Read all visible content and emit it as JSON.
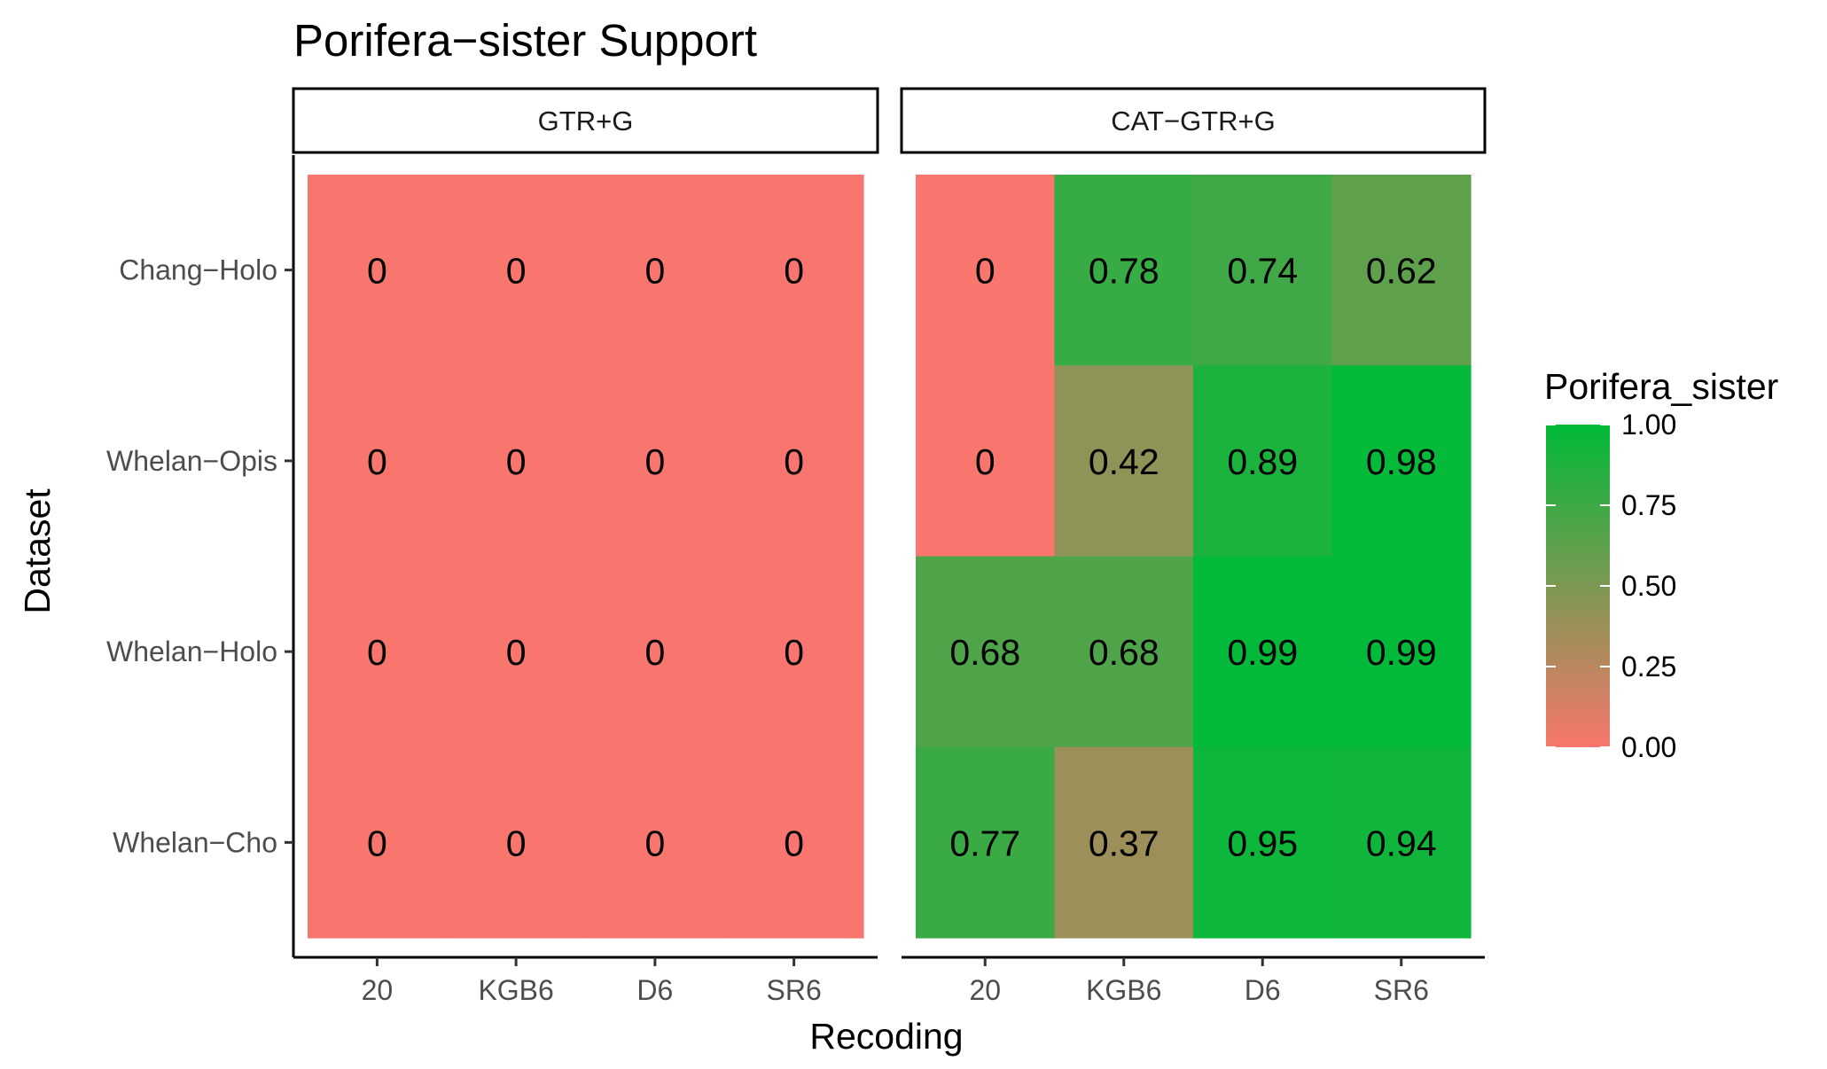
{
  "chart_data": {
    "type": "heatmap",
    "title": "Porifera−sister Support",
    "xlabel": "Recoding",
    "ylabel": "Dataset",
    "x_categories": [
      "20",
      "KGB6",
      "D6",
      "SR6"
    ],
    "y_categories": [
      "Chang−Holo",
      "Whelan−Opis",
      "Whelan−Holo",
      "Whelan−Cho"
    ],
    "facets": [
      {
        "label": "GTR+G",
        "values": [
          [
            0,
            0,
            0,
            0
          ],
          [
            0,
            0,
            0,
            0
          ],
          [
            0,
            0,
            0,
            0
          ],
          [
            0,
            0,
            0,
            0
          ]
        ],
        "value_labels": [
          [
            "0",
            "0",
            "0",
            "0"
          ],
          [
            "0",
            "0",
            "0",
            "0"
          ],
          [
            "0",
            "0",
            "0",
            "0"
          ],
          [
            "0",
            "0",
            "0",
            "0"
          ]
        ]
      },
      {
        "label": "CAT−GTR+G",
        "values": [
          [
            0,
            0.78,
            0.74,
            0.62
          ],
          [
            0,
            0.42,
            0.89,
            0.98
          ],
          [
            0.68,
            0.68,
            0.99,
            0.99
          ],
          [
            0.77,
            0.37,
            0.95,
            0.94
          ]
        ],
        "value_labels": [
          [
            "0",
            "0.78",
            "0.74",
            "0.62"
          ],
          [
            "0",
            "0.42",
            "0.89",
            "0.98"
          ],
          [
            "0.68",
            "0.68",
            "0.99",
            "0.99"
          ],
          [
            "0.77",
            "0.37",
            "0.95",
            "0.94"
          ]
        ]
      }
    ],
    "legend": {
      "title": "Porifera_sister",
      "ticks": [
        "1.00",
        "0.75",
        "0.50",
        "0.25",
        "0.00"
      ],
      "tick_values": [
        1.0,
        0.75,
        0.5,
        0.25,
        0.0
      ],
      "range": [
        0,
        1
      ],
      "low_color": "#F8766D",
      "high_color": "#00BA38",
      "placement": "right"
    },
    "grid": false
  }
}
